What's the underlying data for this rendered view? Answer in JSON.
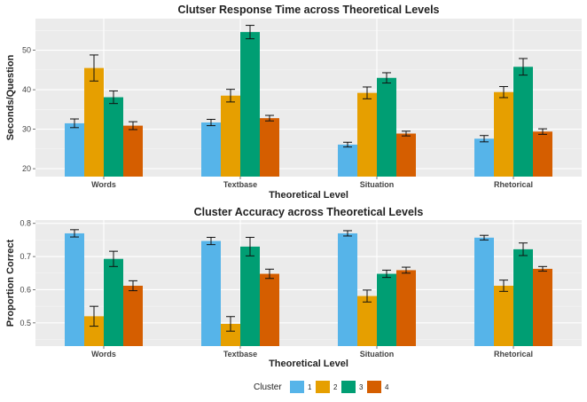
{
  "colors": {
    "panel_bg": "#ebebeb",
    "grid_major": "#ffffff",
    "text": "#222222",
    "tick_text": "#444444",
    "error_bar": "#111111"
  },
  "legend": {
    "title": "Cluster",
    "position": "bottom",
    "entries": [
      {
        "label": "1",
        "color": "#56b4e9"
      },
      {
        "label": "2",
        "color": "#e69f00"
      },
      {
        "label": "3",
        "color": "#009e73"
      },
      {
        "label": "4",
        "color": "#d55e00"
      }
    ]
  },
  "chart_data": [
    {
      "type": "bar",
      "title": "Clutser Response Time across Theoretical Levels",
      "xlabel": "Theoretical Level",
      "ylabel": "Seconds/Question",
      "categories": [
        "Words",
        "Textbase",
        "Situation",
        "Rhetorical"
      ],
      "ylim": [
        18,
        58
      ],
      "yticks": [
        20,
        30,
        40,
        50
      ],
      "grid": true,
      "error_bars": true,
      "series": [
        {
          "name": "1",
          "color": "#56b4e9",
          "values": [
            31.5,
            31.7,
            26.1,
            27.6
          ],
          "errors": [
            1.1,
            0.8,
            0.6,
            0.8
          ]
        },
        {
          "name": "2",
          "color": "#e69f00",
          "values": [
            45.5,
            38.5,
            39.2,
            39.4
          ],
          "errors": [
            3.3,
            1.6,
            1.5,
            1.4
          ]
        },
        {
          "name": "3",
          "color": "#009e73",
          "values": [
            38.1,
            54.6,
            43.0,
            45.8
          ],
          "errors": [
            1.6,
            1.7,
            1.3,
            2.1
          ]
        },
        {
          "name": "4",
          "color": "#d55e00",
          "values": [
            30.9,
            32.8,
            28.9,
            29.4
          ],
          "errors": [
            1.0,
            0.7,
            0.6,
            0.7
          ]
        }
      ]
    },
    {
      "type": "bar",
      "title": "Cluster Accuracy across Theoretical Levels",
      "xlabel": "Theoretical Level",
      "ylabel": "Proportion Correct",
      "categories": [
        "Words",
        "Textbase",
        "Situation",
        "Rhetorical"
      ],
      "ylim": [
        0.43,
        0.81
      ],
      "yticks": [
        0.5,
        0.6,
        0.7,
        0.8
      ],
      "grid": true,
      "error_bars": true,
      "series": [
        {
          "name": "1",
          "color": "#56b4e9",
          "values": [
            0.77,
            0.747,
            0.77,
            0.757
          ],
          "errors": [
            0.011,
            0.011,
            0.008,
            0.007
          ]
        },
        {
          "name": "2",
          "color": "#e69f00",
          "values": [
            0.52,
            0.497,
            0.581,
            0.612
          ],
          "errors": [
            0.03,
            0.022,
            0.018,
            0.017
          ]
        },
        {
          "name": "3",
          "color": "#009e73",
          "values": [
            0.693,
            0.73,
            0.648,
            0.722
          ],
          "errors": [
            0.023,
            0.028,
            0.011,
            0.019
          ]
        },
        {
          "name": "4",
          "color": "#d55e00",
          "values": [
            0.612,
            0.648,
            0.659,
            0.663
          ],
          "errors": [
            0.015,
            0.014,
            0.009,
            0.007
          ]
        }
      ]
    }
  ]
}
